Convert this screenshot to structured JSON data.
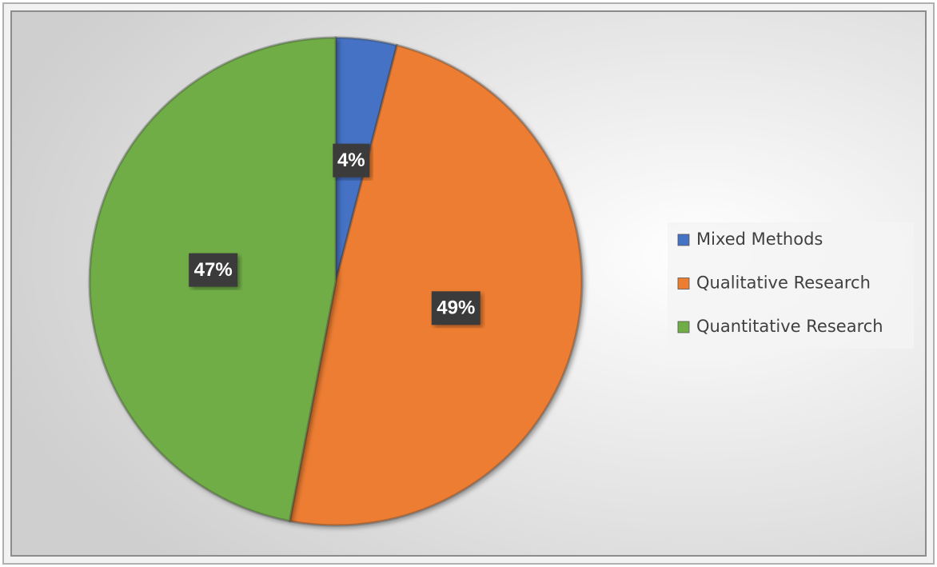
{
  "chart_data": {
    "type": "pie",
    "categories": [
      "Mixed Methods",
      "Qualitative Research",
      "Quantitative Research"
    ],
    "values": [
      4,
      49,
      47
    ],
    "value_labels": [
      "4%",
      "49%",
      "47%"
    ],
    "colors": [
      "#4472c4",
      "#ed7d31",
      "#70ad47"
    ],
    "legend": "right"
  }
}
